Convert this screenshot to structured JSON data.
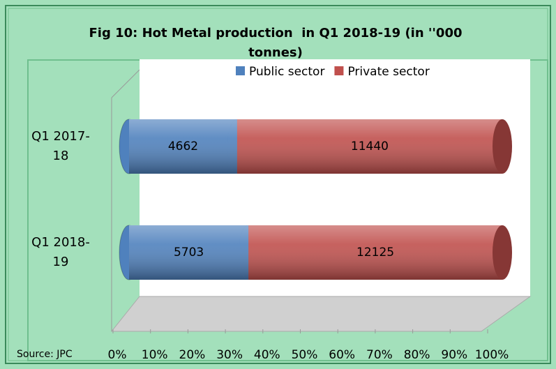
{
  "chart_data": {
    "type": "bar",
    "orientation": "horizontal",
    "stacked": "percent",
    "title": "Fig 10: Hot Metal production  in Q1 2018-19 (in ''000 tonnes)",
    "categories": [
      "Q1 2017-18",
      "Q1 2018-19"
    ],
    "series": [
      {
        "name": "Public sector",
        "color": "#4f81bd",
        "values": [
          4662,
          5703
        ]
      },
      {
        "name": "Private sector",
        "color": "#c0504d",
        "values": [
          11440,
          12125
        ]
      }
    ],
    "xlim": [
      0,
      100
    ],
    "xticks": [
      {
        "value": 0,
        "label": "0%"
      },
      {
        "value": 10,
        "label": "10%"
      },
      {
        "value": 20,
        "label": "20%"
      },
      {
        "value": 30,
        "label": "30%"
      },
      {
        "value": 40,
        "label": "40%"
      },
      {
        "value": 50,
        "label": "50%"
      },
      {
        "value": 60,
        "label": "60%"
      },
      {
        "value": 70,
        "label": "70%"
      },
      {
        "value": 80,
        "label": "80%"
      },
      {
        "value": 90,
        "label": "90%"
      },
      {
        "value": 100,
        "label": "100%"
      }
    ],
    "legend": "top",
    "source": "Source: JPC"
  }
}
